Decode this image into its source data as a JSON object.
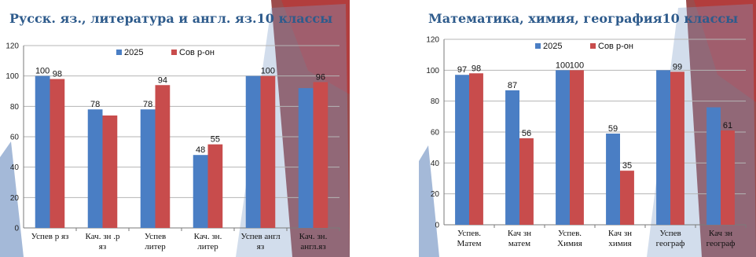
{
  "chart_data": [
    {
      "type": "bar",
      "title": "Русск. яз., литература и англ. яз.10 классы",
      "categories": [
        [
          "Успев р яз"
        ],
        [
          "Кач. зн .р",
          "яз"
        ],
        [
          "Успев",
          "литер"
        ],
        [
          "Кач. зн.",
          "литер"
        ],
        [
          "Успев англ",
          "яз"
        ],
        [
          "Кач. зн.",
          "англ.яз"
        ]
      ],
      "series": [
        {
          "name": "2025",
          "values": [
            100,
            78,
            78,
            48,
            100,
            92
          ],
          "labels": [
            "100",
            "78",
            "78",
            "48",
            "",
            ""
          ]
        },
        {
          "name": "Сов р-он",
          "values": [
            98,
            74,
            94,
            55,
            100,
            96
          ],
          "labels": [
            "98",
            "",
            "94",
            "55",
            "100",
            "96"
          ]
        }
      ],
      "ylim": [
        0,
        120
      ],
      "yticks": [
        "0",
        "20",
        "40",
        "60",
        "80",
        "100",
        "120"
      ],
      "grid": true,
      "legend": "top",
      "colors": [
        "#4a7ec4",
        "#c84c4c"
      ]
    },
    {
      "type": "bar",
      "title": "Математика, химия, география10 классы",
      "categories": [
        [
          "Успев.",
          "Матем"
        ],
        [
          "Кач зн",
          "матем"
        ],
        [
          "Успев.",
          "Химия"
        ],
        [
          "Кач зн",
          "химия"
        ],
        [
          "Успев",
          "географ"
        ],
        [
          "Кач зн",
          "географ"
        ]
      ],
      "series": [
        {
          "name": "2025",
          "values": [
            97,
            87,
            100,
            59,
            100,
            76
          ],
          "labels": [
            "97",
            "87",
            "100",
            "59",
            "",
            ""
          ]
        },
        {
          "name": "Сов р-он",
          "values": [
            98,
            56,
            100,
            35,
            99,
            61
          ],
          "labels": [
            "98",
            "56",
            "100",
            "35",
            "99",
            "61"
          ]
        }
      ],
      "ylim": [
        0,
        120
      ],
      "yticks": [
        "0",
        "20",
        "40",
        "60",
        "80",
        "100",
        "120"
      ],
      "grid": true,
      "legend": "top",
      "colors": [
        "#4a7ec4",
        "#c84c4c"
      ]
    }
  ]
}
